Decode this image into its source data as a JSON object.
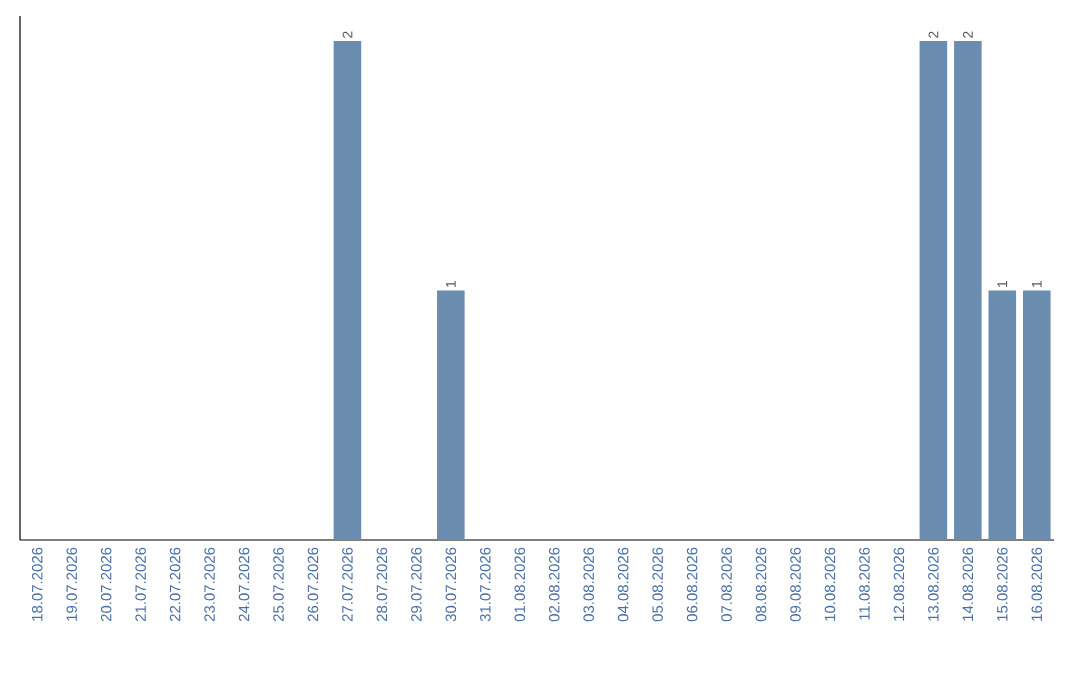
{
  "chart_data": {
    "type": "bar",
    "categories": [
      "18.07.2026",
      "19.07.2026",
      "20.07.2026",
      "21.07.2026",
      "22.07.2026",
      "23.07.2026",
      "24.07.2026",
      "25.07.2026",
      "26.07.2026",
      "27.07.2026",
      "28.07.2026",
      "29.07.2026",
      "30.07.2026",
      "31.07.2026",
      "01.08.2026",
      "02.08.2026",
      "03.08.2026",
      "04.08.2026",
      "05.08.2026",
      "06.08.2026",
      "07.08.2026",
      "08.08.2026",
      "09.08.2026",
      "10.08.2026",
      "11.08.2026",
      "12.08.2026",
      "13.08.2026",
      "14.08.2026",
      "15.08.2026",
      "16.08.2026"
    ],
    "values": [
      0,
      0,
      0,
      0,
      0,
      0,
      0,
      0,
      0,
      2,
      0,
      0,
      1,
      0,
      0,
      0,
      0,
      0,
      0,
      0,
      0,
      0,
      0,
      0,
      0,
      0,
      2,
      2,
      1,
      1
    ],
    "value_labels": [
      null,
      null,
      null,
      null,
      null,
      null,
      null,
      null,
      null,
      "2",
      null,
      null,
      "1",
      null,
      null,
      null,
      null,
      null,
      null,
      null,
      null,
      null,
      null,
      null,
      null,
      null,
      "2",
      "2",
      "1",
      "1"
    ],
    "color": "#6a8caf",
    "tick_labels": "x"
  }
}
